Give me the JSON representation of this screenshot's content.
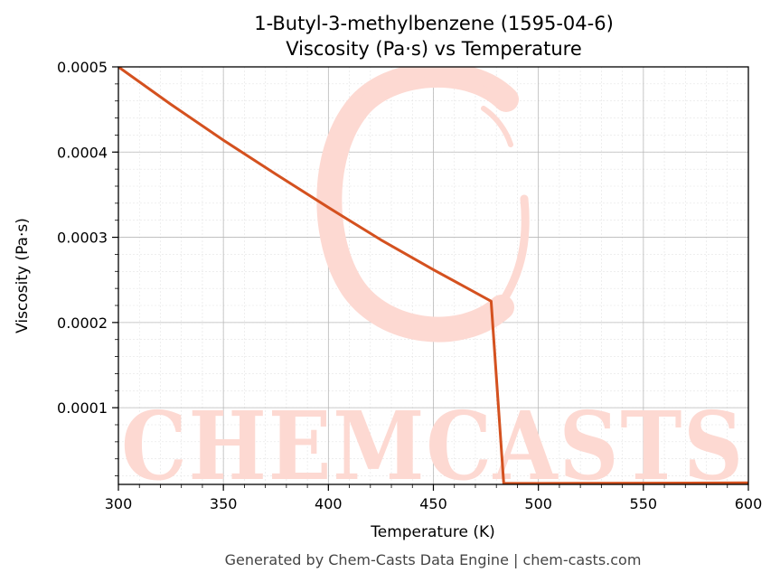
{
  "chart_data": {
    "type": "line",
    "title": "1-Butyl-3-methylbenzene (1595-04-6)",
    "subtitle": "Viscosity (Pa·s) vs Temperature",
    "xlabel": "Temperature (K)",
    "ylabel": "Viscosity (Pa·s)",
    "xlim": [
      300,
      600
    ],
    "ylim": [
      1e-05,
      0.0005
    ],
    "x_ticks": [
      "300",
      "350",
      "400",
      "450",
      "500",
      "550",
      "600"
    ],
    "y_ticks": [
      "0.0001",
      "0.0002",
      "0.0003",
      "0.0004",
      "0.0005"
    ],
    "grid": true,
    "legend": "none",
    "series": [
      {
        "color": "#d4511f",
        "x": [
          300,
          325,
          350,
          375,
          400,
          425,
          450,
          477.5,
          483.5,
          500,
          550,
          600
        ],
        "y": [
          0.0005,
          0.000456,
          0.000414,
          0.000374,
          0.000335,
          0.000297,
          0.000262,
          0.000225,
          1.12e-05,
          1.12e-05,
          1.15e-05,
          1.18e-05
        ]
      }
    ]
  },
  "watermark": {
    "text": "CHEMCASTS",
    "color": "#fdd9d2"
  },
  "footer": "Generated by Chem-Casts Data Engine | chem-casts.com"
}
